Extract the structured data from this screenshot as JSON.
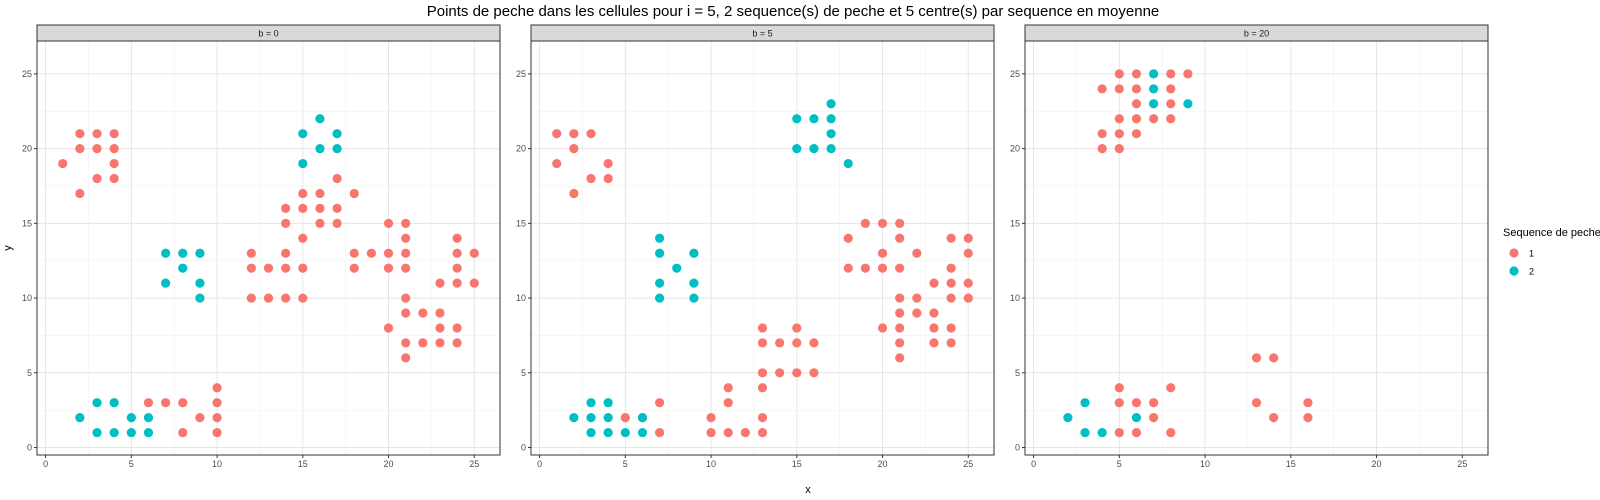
{
  "chart_data": {
    "type": "scatter",
    "title": "Points de peche dans les cellules pour i = 5, 2 sequence(s) de peche et 5 centre(s) par sequence en moyenne",
    "xlabel": "x",
    "ylabel": "y",
    "xlim": [
      -0.5,
      26.5
    ],
    "ylim": [
      -0.5,
      27.2
    ],
    "ticks": [
      0,
      5,
      10,
      15,
      20,
      25
    ],
    "tick_labels": [
      "0",
      "5",
      "10",
      "15",
      "20",
      "25"
    ],
    "grid": true,
    "legend": {
      "title": "Sequence de peche",
      "position": "right",
      "items": [
        {
          "label": "1",
          "color": "#F8766D"
        },
        {
          "label": "2",
          "color": "#00BFC4"
        }
      ]
    },
    "panels": [
      {
        "strip": "b = 0",
        "series": [
          {
            "name": "1",
            "points": [
              [
                1,
                19
              ],
              [
                2,
                21
              ],
              [
                2,
                20
              ],
              [
                2,
                17
              ],
              [
                3,
                21
              ],
              [
                3,
                20
              ],
              [
                3,
                18
              ],
              [
                4,
                21
              ],
              [
                4,
                20
              ],
              [
                4,
                19
              ],
              [
                4,
                18
              ],
              [
                6,
                3
              ],
              [
                7,
                3
              ],
              [
                8,
                3
              ],
              [
                8,
                1
              ],
              [
                9,
                2
              ],
              [
                10,
                4
              ],
              [
                10,
                3
              ],
              [
                10,
                2
              ],
              [
                10,
                1
              ],
              [
                12,
                13
              ],
              [
                12,
                12
              ],
              [
                12,
                10
              ],
              [
                13,
                12
              ],
              [
                13,
                10
              ],
              [
                14,
                16
              ],
              [
                14,
                15
              ],
              [
                14,
                13
              ],
              [
                14,
                12
              ],
              [
                14,
                10
              ],
              [
                15,
                17
              ],
              [
                15,
                16
              ],
              [
                15,
                14
              ],
              [
                15,
                12
              ],
              [
                15,
                10
              ],
              [
                16,
                17
              ],
              [
                16,
                16
              ],
              [
                16,
                15
              ],
              [
                17,
                18
              ],
              [
                17,
                16
              ],
              [
                17,
                15
              ],
              [
                18,
                17
              ],
              [
                18,
                13
              ],
              [
                18,
                12
              ],
              [
                19,
                13
              ],
              [
                20,
                15
              ],
              [
                20,
                13
              ],
              [
                20,
                12
              ],
              [
                20,
                8
              ],
              [
                21,
                15
              ],
              [
                21,
                14
              ],
              [
                21,
                13
              ],
              [
                21,
                12
              ],
              [
                21,
                10
              ],
              [
                21,
                9
              ],
              [
                21,
                7
              ],
              [
                21,
                6
              ],
              [
                22,
                9
              ],
              [
                22,
                7
              ],
              [
                23,
                11
              ],
              [
                23,
                9
              ],
              [
                23,
                8
              ],
              [
                23,
                7
              ],
              [
                24,
                14
              ],
              [
                24,
                13
              ],
              [
                24,
                12
              ],
              [
                24,
                11
              ],
              [
                24,
                8
              ],
              [
                24,
                7
              ],
              [
                25,
                13
              ],
              [
                25,
                11
              ]
            ]
          },
          {
            "name": "2",
            "points": [
              [
                2,
                2
              ],
              [
                3,
                3
              ],
              [
                3,
                1
              ],
              [
                4,
                3
              ],
              [
                4,
                1
              ],
              [
                5,
                2
              ],
              [
                5,
                1
              ],
              [
                6,
                2
              ],
              [
                6,
                1
              ],
              [
                7,
                13
              ],
              [
                7,
                11
              ],
              [
                8,
                13
              ],
              [
                8,
                12
              ],
              [
                9,
                13
              ],
              [
                9,
                11
              ],
              [
                9,
                10
              ],
              [
                15,
                21
              ],
              [
                15,
                19
              ],
              [
                16,
                22
              ],
              [
                16,
                20
              ],
              [
                17,
                21
              ],
              [
                17,
                20
              ]
            ]
          }
        ]
      },
      {
        "strip": "b = 5",
        "series": [
          {
            "name": "1",
            "points": [
              [
                1,
                21
              ],
              [
                1,
                19
              ],
              [
                2,
                21
              ],
              [
                2,
                20
              ],
              [
                2,
                17
              ],
              [
                3,
                21
              ],
              [
                3,
                18
              ],
              [
                4,
                19
              ],
              [
                4,
                18
              ],
              [
                5,
                2
              ],
              [
                6,
                2
              ],
              [
                7,
                3
              ],
              [
                7,
                1
              ],
              [
                10,
                2
              ],
              [
                10,
                1
              ],
              [
                11,
                4
              ],
              [
                11,
                3
              ],
              [
                11,
                1
              ],
              [
                12,
                1
              ],
              [
                13,
                8
              ],
              [
                13,
                7
              ],
              [
                13,
                5
              ],
              [
                13,
                4
              ],
              [
                13,
                2
              ],
              [
                13,
                1
              ],
              [
                14,
                7
              ],
              [
                14,
                5
              ],
              [
                15,
                8
              ],
              [
                15,
                7
              ],
              [
                15,
                5
              ],
              [
                16,
                7
              ],
              [
                16,
                5
              ],
              [
                18,
                14
              ],
              [
                18,
                12
              ],
              [
                19,
                15
              ],
              [
                19,
                12
              ],
              [
                20,
                15
              ],
              [
                20,
                13
              ],
              [
                20,
                12
              ],
              [
                20,
                8
              ],
              [
                21,
                15
              ],
              [
                21,
                14
              ],
              [
                21,
                12
              ],
              [
                21,
                10
              ],
              [
                21,
                9
              ],
              [
                21,
                8
              ],
              [
                21,
                7
              ],
              [
                21,
                6
              ],
              [
                22,
                13
              ],
              [
                22,
                10
              ],
              [
                22,
                9
              ],
              [
                23,
                11
              ],
              [
                23,
                9
              ],
              [
                23,
                8
              ],
              [
                23,
                7
              ],
              [
                24,
                14
              ],
              [
                24,
                12
              ],
              [
                24,
                11
              ],
              [
                24,
                10
              ],
              [
                24,
                8
              ],
              [
                24,
                7
              ],
              [
                25,
                14
              ],
              [
                25,
                13
              ],
              [
                25,
                11
              ],
              [
                25,
                10
              ]
            ]
          },
          {
            "name": "2",
            "points": [
              [
                2,
                2
              ],
              [
                3,
                3
              ],
              [
                3,
                2
              ],
              [
                3,
                1
              ],
              [
                4,
                3
              ],
              [
                4,
                2
              ],
              [
                4,
                1
              ],
              [
                5,
                1
              ],
              [
                6,
                2
              ],
              [
                6,
                1
              ],
              [
                7,
                14
              ],
              [
                7,
                13
              ],
              [
                7,
                11
              ],
              [
                7,
                10
              ],
              [
                8,
                12
              ],
              [
                9,
                13
              ],
              [
                9,
                11
              ],
              [
                9,
                10
              ],
              [
                15,
                22
              ],
              [
                15,
                20
              ],
              [
                16,
                22
              ],
              [
                16,
                20
              ],
              [
                17,
                23
              ],
              [
                17,
                22
              ],
              [
                17,
                21
              ],
              [
                17,
                20
              ],
              [
                18,
                19
              ]
            ]
          }
        ]
      },
      {
        "strip": "b = 20",
        "series": [
          {
            "name": "1",
            "points": [
              [
                4,
                24
              ],
              [
                4,
                21
              ],
              [
                4,
                20
              ],
              [
                5,
                25
              ],
              [
                5,
                24
              ],
              [
                5,
                22
              ],
              [
                5,
                21
              ],
              [
                5,
                20
              ],
              [
                6,
                25
              ],
              [
                6,
                24
              ],
              [
                6,
                23
              ],
              [
                6,
                22
              ],
              [
                6,
                21
              ],
              [
                7,
                22
              ],
              [
                8,
                25
              ],
              [
                8,
                24
              ],
              [
                8,
                23
              ],
              [
                8,
                22
              ],
              [
                9,
                25
              ],
              [
                5,
                4
              ],
              [
                5,
                3
              ],
              [
                5,
                1
              ],
              [
                6,
                3
              ],
              [
                6,
                1
              ],
              [
                7,
                3
              ],
              [
                7,
                2
              ],
              [
                8,
                4
              ],
              [
                8,
                1
              ],
              [
                13,
                6
              ],
              [
                13,
                3
              ],
              [
                14,
                6
              ],
              [
                14,
                2
              ],
              [
                16,
                3
              ],
              [
                16,
                2
              ]
            ]
          },
          {
            "name": "2",
            "points": [
              [
                7,
                25
              ],
              [
                7,
                24
              ],
              [
                7,
                23
              ],
              [
                9,
                23
              ],
              [
                2,
                2
              ],
              [
                3,
                3
              ],
              [
                3,
                1
              ],
              [
                4,
                1
              ],
              [
                6,
                2
              ]
            ]
          }
        ]
      }
    ]
  }
}
